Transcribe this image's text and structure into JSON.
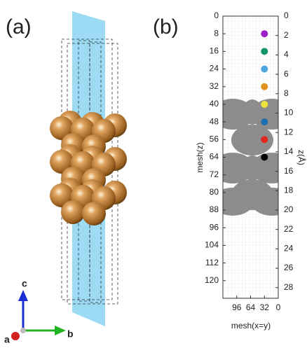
{
  "panel_a": {
    "label": "(a)",
    "axis_c": "c",
    "axis_b": "b",
    "axis_a": "a"
  },
  "chart_data": {
    "type": "scatter",
    "panel_label": "(b)",
    "xlabel": "mesh(x=y)",
    "ylabel": "mesh(z)",
    "y2label": "z(Å)",
    "xlim": [
      128,
      0
    ],
    "xticks": [
      96,
      64,
      32,
      0
    ],
    "ylim": [
      0,
      128
    ],
    "yticks": [
      0,
      8,
      16,
      24,
      32,
      40,
      48,
      56,
      64,
      72,
      80,
      88,
      96,
      104,
      112,
      120
    ],
    "y2lim": [
      0,
      29.1
    ],
    "y2ticks": [
      0,
      2,
      4,
      6,
      8,
      10,
      12,
      14,
      16,
      18,
      20,
      22,
      24,
      26,
      28
    ],
    "series": [
      {
        "x": [
          32,
          32,
          32,
          32,
          32,
          32,
          32,
          32
        ],
        "values": [
          8,
          16,
          24,
          32,
          40,
          48,
          56,
          64
        ],
        "colors": [
          "#9b1fc4",
          "#13966b",
          "#4fa9e0",
          "#e0901b",
          "#ece43a",
          "#1d6fb0",
          "#e0281e",
          "#000000"
        ]
      }
    ]
  }
}
